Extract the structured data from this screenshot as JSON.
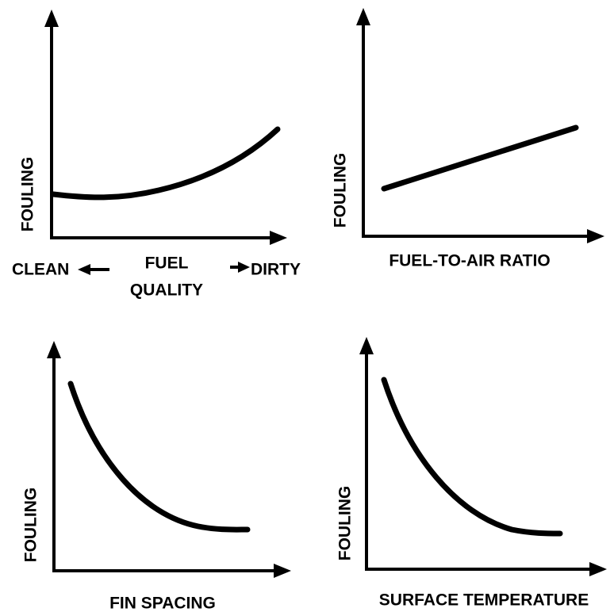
{
  "panels": [
    {
      "y_label": "FOULING",
      "x_label_left": "CLEAN",
      "x_label_center": "FUEL",
      "x_label_center_2": "QUALITY",
      "x_label_right": "DIRTY"
    },
    {
      "y_label": "FOULING",
      "x_label": "FUEL-TO-AIR RATIO"
    },
    {
      "y_label": "FOULING",
      "x_label": "FIN SPACING"
    },
    {
      "y_label": "FOULING",
      "x_label": "SURFACE TEMPERATURE"
    }
  ]
}
